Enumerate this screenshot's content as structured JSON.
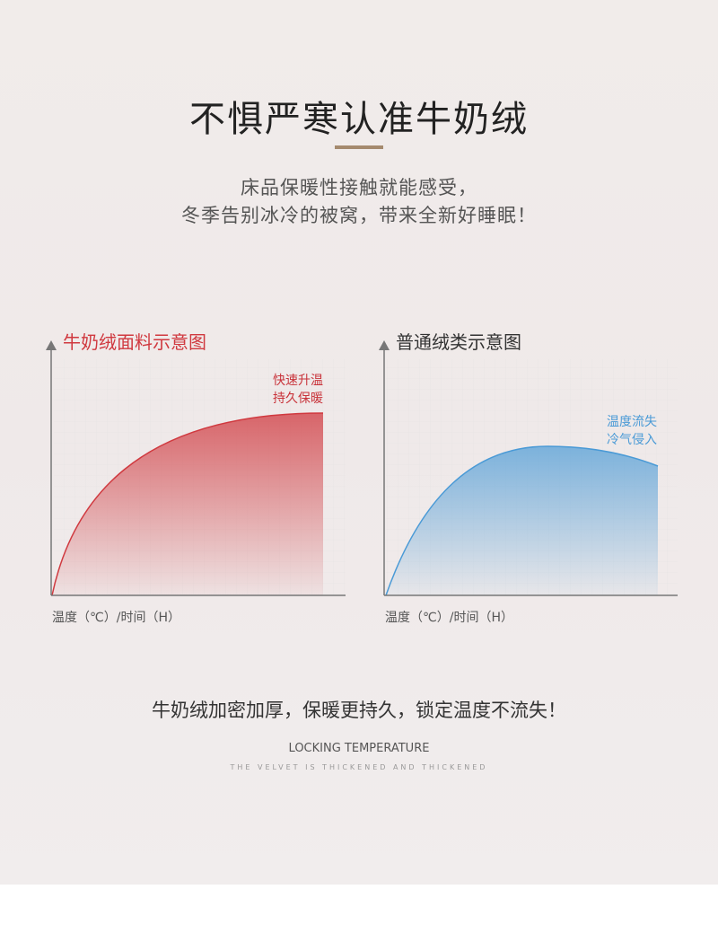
{
  "heading": "不惧严寒认准牛奶绒",
  "subtitle_lines": [
    "床品保暖性接触就能感受，",
    "冬季告别冰冷的被窝，带来全新好睡眠！"
  ],
  "charts": [
    {
      "title": "牛奶绒面料示意图",
      "note_lines": [
        "快速升温",
        "持久保暖"
      ],
      "axis_label": "温度（℃）/时间（H）",
      "color": "#d0393f"
    },
    {
      "title": "普通绒类示意图",
      "note_lines": [
        "温度流失",
        "冷气侵入"
      ],
      "axis_label": "温度（℃）/时间（H）",
      "color": "#4a9ad6"
    }
  ],
  "tagline": "牛奶绒加密加厚，保暖更持久，锁定温度不流失！",
  "english_title": "LOCKING TEMPERATURE",
  "english_sub": "THE VELVET IS THICKENED AND THICKENED"
}
